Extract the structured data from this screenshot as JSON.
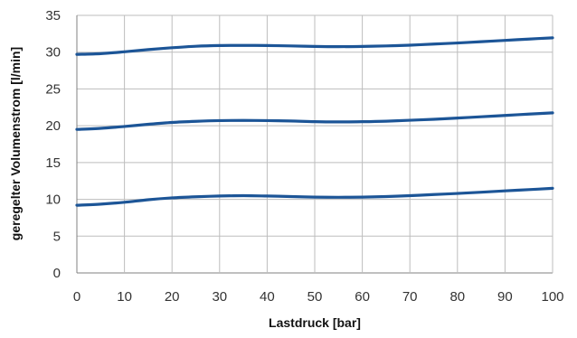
{
  "colors": {
    "series": "#1c5597",
    "grid": "#bdbdbd",
    "axis": "#808080"
  },
  "chart_data": {
    "type": "line",
    "title": "",
    "xlabel": "Lastdruck [bar]",
    "ylabel": "geregelter Volumenstrom [l/min]",
    "xlim": [
      0,
      100
    ],
    "ylim": [
      0,
      35
    ],
    "x_ticks": [
      "0",
      "10",
      "20",
      "30",
      "40",
      "50",
      "60",
      "70",
      "80",
      "90",
      "100"
    ],
    "y_ticks": [
      "0",
      "5",
      "10",
      "15",
      "20",
      "25",
      "30",
      "35"
    ],
    "grid": true,
    "legend": "none",
    "x": [
      0,
      5,
      10,
      15,
      20,
      25,
      30,
      35,
      40,
      45,
      50,
      55,
      60,
      65,
      70,
      75,
      80,
      85,
      90,
      95,
      100
    ],
    "series": [
      {
        "values": [
          9.2,
          9.35,
          9.6,
          9.95,
          10.2,
          10.35,
          10.45,
          10.5,
          10.45,
          10.38,
          10.3,
          10.28,
          10.3,
          10.38,
          10.5,
          10.65,
          10.8,
          10.97,
          11.15,
          11.32,
          11.5
        ]
      },
      {
        "values": [
          19.5,
          19.65,
          19.9,
          20.2,
          20.45,
          20.6,
          20.7,
          20.72,
          20.7,
          20.65,
          20.55,
          20.52,
          20.55,
          20.62,
          20.75,
          20.88,
          21.05,
          21.22,
          21.4,
          21.58,
          21.75
        ]
      },
      {
        "values": [
          29.7,
          29.8,
          30.05,
          30.35,
          30.6,
          30.8,
          30.9,
          30.92,
          30.9,
          30.85,
          30.78,
          30.75,
          30.78,
          30.85,
          30.95,
          31.1,
          31.25,
          31.42,
          31.6,
          31.78,
          31.95
        ]
      }
    ]
  }
}
